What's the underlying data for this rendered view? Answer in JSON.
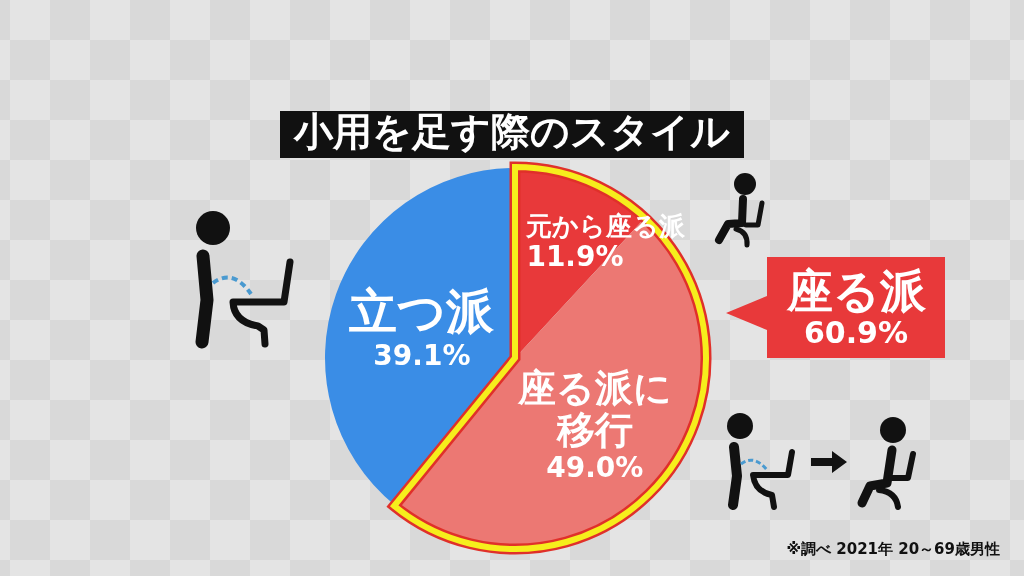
{
  "chart_data": {
    "type": "pie",
    "title": "小用を足す際のスタイル",
    "categories": [
      "元から座る派",
      "座る派に移行",
      "立つ派"
    ],
    "values": [
      11.9,
      49.0,
      39.1
    ],
    "colors": [
      "#e8393a",
      "#ec7873",
      "#3a8de6"
    ],
    "value_labels": [
      "11.9%",
      "49.0%",
      "39.1%"
    ],
    "annotations": [
      "座る派\n60.9%",
      "※調べ 2021年 20～69歳男性"
    ]
  }
}
